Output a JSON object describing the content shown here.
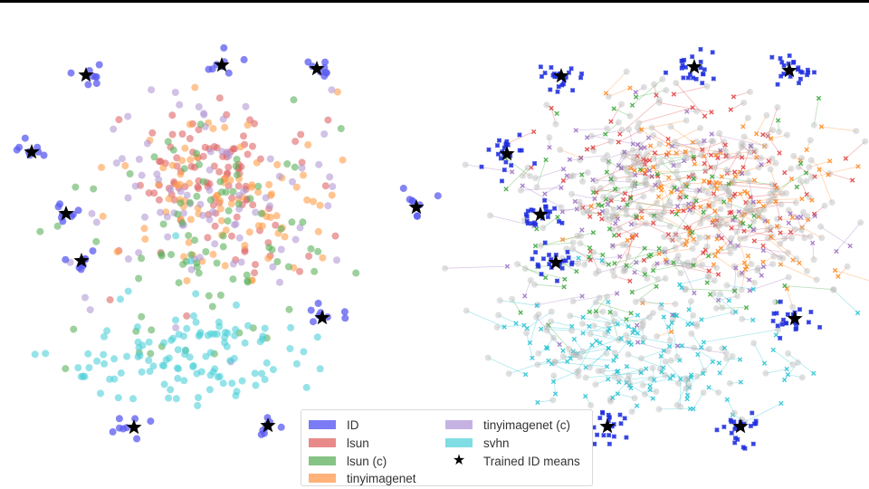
{
  "chart_data": [
    {
      "type": "scatter",
      "title": "",
      "panel": "left",
      "description": "2D embedding of ID and OOD samples; ID clusters surround trained ID means (stars)",
      "xlabel": "",
      "ylabel": "",
      "grid": false,
      "axes_visible": false,
      "legend_position": "bottom center",
      "star_positions": [
        [
          95,
          83
        ],
        [
          245,
          72
        ],
        [
          350,
          76
        ],
        [
          35,
          168
        ],
        [
          73,
          236
        ],
        [
          460,
          229
        ],
        [
          90,
          288
        ],
        [
          356,
          351
        ],
        [
          148,
          472
        ],
        [
          296,
          470
        ]
      ],
      "series": [
        {
          "name": "ID",
          "color": "#5b5bf0",
          "shape": "circle"
        },
        {
          "name": "lsun",
          "color": "#e06666",
          "shape": "circle"
        },
        {
          "name": "lsun (c)",
          "color": "#5bb05b",
          "shape": "circle"
        },
        {
          "name": "tinyimagenet",
          "color": "#ff9f4a",
          "shape": "circle"
        },
        {
          "name": "tinyimagenet (c)",
          "color": "#b39ad6",
          "shape": "circle"
        },
        {
          "name": "svhn",
          "color": "#4fd1d9",
          "shape": "circle"
        }
      ]
    },
    {
      "type": "scatter",
      "title": "",
      "panel": "right",
      "description": "Same embedding with trajectories (lines) connecting grey origin points to x-markers",
      "xlabel": "",
      "ylabel": "",
      "grid": false,
      "axes_visible": false,
      "star_positions": [
        [
          620,
          84
        ],
        [
          767,
          74
        ],
        [
          872,
          78
        ],
        [
          560,
          170
        ],
        [
          597,
          237
        ],
        [
          614,
          290
        ],
        [
          878,
          352
        ],
        [
          671,
          471
        ],
        [
          818,
          471
        ]
      ],
      "series": [
        {
          "name": "ID",
          "color": "#1f2fe0",
          "shape": "x"
        },
        {
          "name": "lsun",
          "color": "#e03030",
          "shape": "x"
        },
        {
          "name": "lsun (c)",
          "color": "#2ca02c",
          "shape": "x"
        },
        {
          "name": "tinyimagenet",
          "color": "#ff7f0e",
          "shape": "x"
        },
        {
          "name": "tinyimagenet (c)",
          "color": "#9467bd",
          "shape": "x"
        },
        {
          "name": "svhn",
          "color": "#17becf",
          "shape": "x"
        }
      ]
    }
  ],
  "legend": {
    "items": [
      {
        "label": "ID",
        "color": "#7b7bf5"
      },
      {
        "label": "lsun",
        "color": "#e88a8a"
      },
      {
        "label": "lsun (c)",
        "color": "#86c486"
      },
      {
        "label": "tinyimagenet",
        "color": "#ffb27a"
      },
      {
        "label": "tinyimagenet (c)",
        "color": "#c6b2e2"
      },
      {
        "label": "svhn",
        "color": "#7fdde3"
      },
      {
        "label": "Trained ID means",
        "marker": "★"
      }
    ]
  }
}
